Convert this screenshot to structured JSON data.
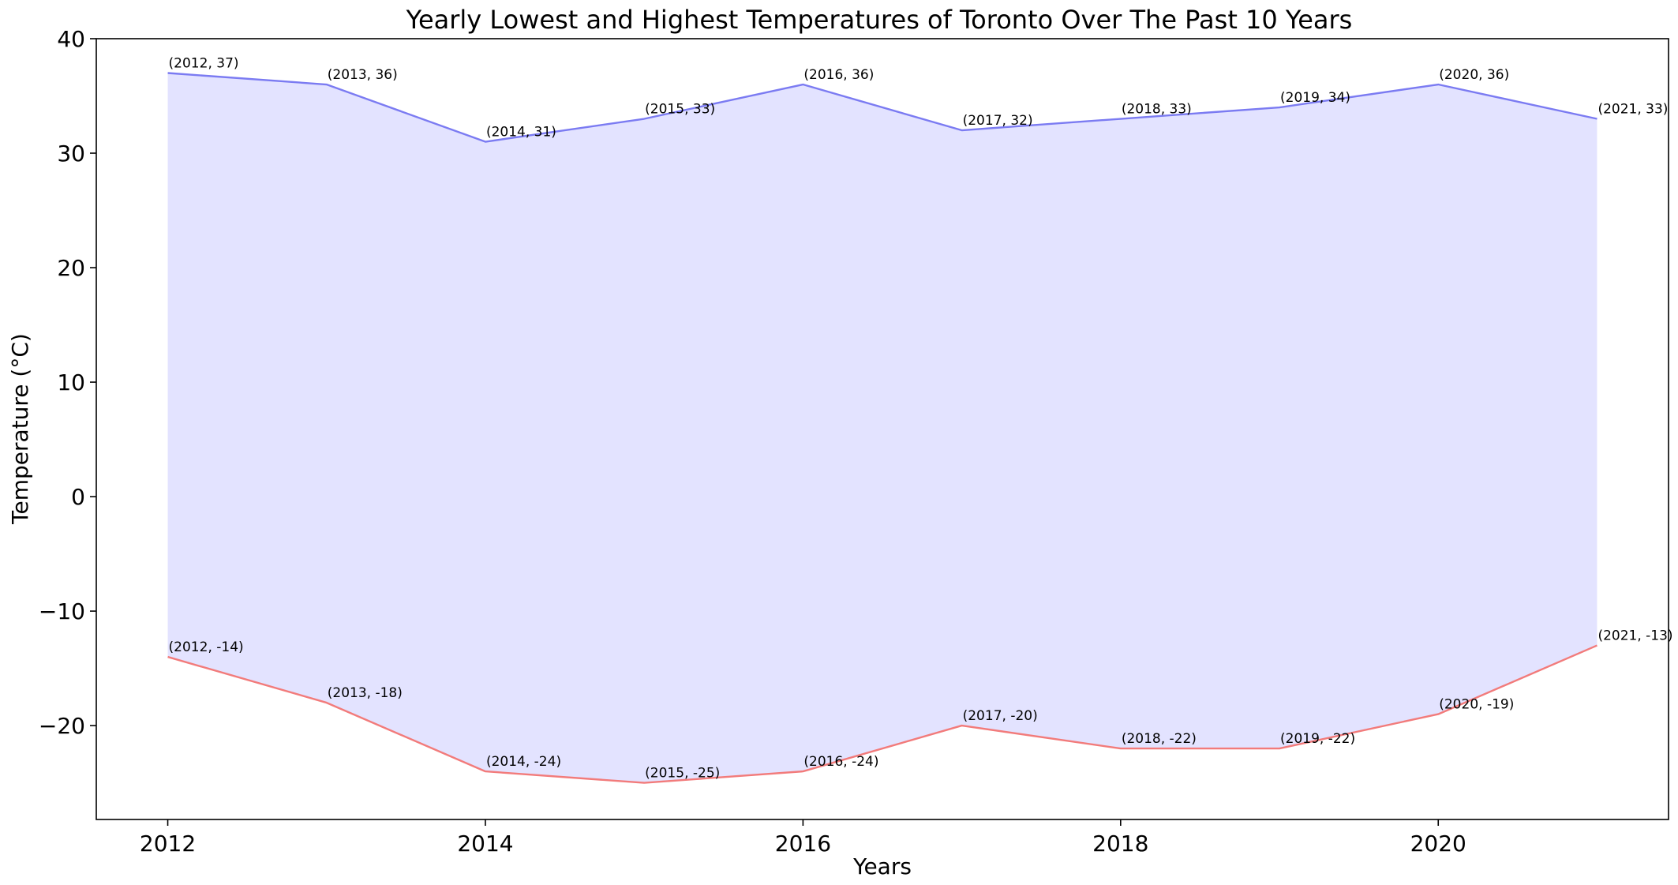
{
  "chart_data": {
    "type": "area",
    "title": "Yearly Lowest and Highest Temperatures of Toronto Over The Past 10 Years",
    "xlabel": "Years",
    "ylabel": "Temperature (°C)",
    "x": [
      2012,
      2013,
      2014,
      2015,
      2016,
      2017,
      2018,
      2019,
      2020,
      2021
    ],
    "xlim": [
      2011.55,
      2021.45
    ],
    "ylim": [
      -28.2,
      40.0
    ],
    "x_ticks": [
      {
        "value": 2012,
        "label": "2012"
      },
      {
        "value": 2014,
        "label": "2014"
      },
      {
        "value": 2016,
        "label": "2016"
      },
      {
        "value": 2018,
        "label": "2018"
      },
      {
        "value": 2020,
        "label": "2020"
      }
    ],
    "y_ticks": [
      {
        "value": 40,
        "label": "40"
      },
      {
        "value": 30,
        "label": "30"
      },
      {
        "value": 20,
        "label": "20"
      },
      {
        "value": 10,
        "label": "10"
      },
      {
        "value": 0,
        "label": "0"
      },
      {
        "value": -10,
        "label": "−10"
      },
      {
        "value": -20,
        "label": "−20"
      }
    ],
    "grid": false,
    "fill_between": true,
    "fill_color": "#e3e3ff",
    "series": [
      {
        "key": "high",
        "values": [
          37,
          36,
          31,
          33,
          36,
          32,
          33,
          34,
          36,
          33
        ],
        "color": "#7b7bf2",
        "point_labels": [
          "(2012, 37)",
          "(2013, 36)",
          "(2014, 31)",
          "(2015, 33)",
          "(2016, 36)",
          "(2017, 32)",
          "(2018, 33)",
          "(2019, 34)",
          "(2020, 36)",
          "(2021, 33)"
        ]
      },
      {
        "key": "low",
        "values": [
          -14,
          -18,
          -24,
          -25,
          -24,
          -20,
          -22,
          -22,
          -19,
          -13
        ],
        "color": "#f27b7b",
        "point_labels": [
          "(2012, -14)",
          "(2013, -18)",
          "(2014, -24)",
          "(2015, -25)",
          "(2016, -24)",
          "(2017, -20)",
          "(2018, -22)",
          "(2019, -22)",
          "(2020, -19)",
          "(2021, -13)"
        ]
      }
    ]
  }
}
